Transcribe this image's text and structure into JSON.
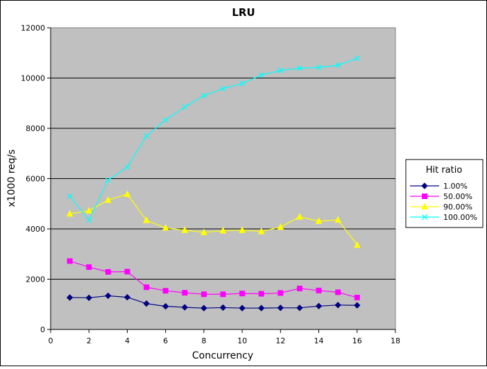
{
  "chart_data": {
    "type": "line",
    "title": "LRU",
    "xlabel": "Concurrency",
    "ylabel": "x1000 req/s",
    "xlim": [
      0,
      18
    ],
    "ylim": [
      0,
      12000
    ],
    "xticks": [
      0,
      2,
      4,
      6,
      8,
      10,
      12,
      14,
      16,
      18
    ],
    "yticks": [
      0,
      2000,
      4000,
      6000,
      8000,
      10000,
      12000
    ],
    "grid": "horizontal",
    "plot_background": "#c0c0c0",
    "legend": {
      "title": "Hit ratio",
      "placement": "right"
    },
    "x": [
      1,
      2,
      3,
      4,
      5,
      6,
      7,
      8,
      9,
      10,
      11,
      12,
      13,
      14,
      15,
      16
    ],
    "series": [
      {
        "name": "1.00%",
        "color": "#000080",
        "marker": "diamond",
        "values": [
          1270,
          1260,
          1340,
          1280,
          1030,
          920,
          880,
          850,
          870,
          850,
          850,
          860,
          860,
          930,
          970,
          960
        ]
      },
      {
        "name": "50.00%",
        "color": "#ff00ff",
        "marker": "square",
        "values": [
          2720,
          2480,
          2290,
          2300,
          1680,
          1540,
          1460,
          1400,
          1400,
          1430,
          1420,
          1450,
          1630,
          1550,
          1480,
          1270
        ]
      },
      {
        "name": "90.00%",
        "color": "#ffff00",
        "marker": "triangle",
        "values": [
          4600,
          4720,
          5150,
          5380,
          4340,
          4040,
          3950,
          3860,
          3930,
          3950,
          3900,
          4070,
          4480,
          4310,
          4360,
          3360
        ]
      },
      {
        "name": "100.00%",
        "color": "#00ffff",
        "marker": "x",
        "values": [
          5300,
          4350,
          5940,
          6460,
          7700,
          8330,
          8850,
          9300,
          9580,
          9780,
          10120,
          10300,
          10390,
          10420,
          10510,
          10780
        ]
      }
    ]
  }
}
